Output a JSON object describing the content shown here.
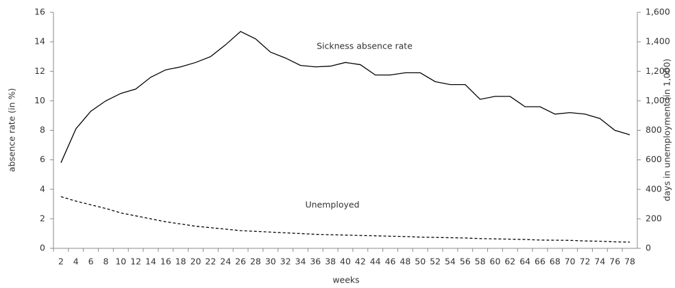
{
  "chart_data": {
    "type": "line",
    "x_label": "weeks",
    "y_label": "absence rate (in %)",
    "y2_label": "days in unemployment (in 1,000)",
    "categories": [
      "2",
      "4",
      "6",
      "8",
      "10",
      "12",
      "14",
      "16",
      "18",
      "20",
      "22",
      "24",
      "26",
      "28",
      "30",
      "32",
      "34",
      "36",
      "38",
      "40",
      "42",
      "44",
      "46",
      "48",
      "50",
      "52",
      "54",
      "56",
      "58",
      "60",
      "62",
      "64",
      "66",
      "68",
      "70",
      "72",
      "74",
      "76",
      "78"
    ],
    "series": [
      {
        "name": "Sickness absence rate",
        "color": "#000000",
        "dash": false,
        "values": [
          5.8,
          8.1,
          9.3,
          10.0,
          10.5,
          10.8,
          11.6,
          12.1,
          12.3,
          12.6,
          13.0,
          13.8,
          14.7,
          14.2,
          13.3,
          12.9,
          12.4,
          12.3,
          12.35,
          12.6,
          12.45,
          11.75,
          11.75,
          11.9,
          11.9,
          11.3,
          11.1,
          11.1,
          10.1,
          10.3,
          10.3,
          9.6,
          9.6,
          9.1,
          9.2,
          9.1,
          8.8,
          8.0,
          7.7
        ]
      },
      {
        "name": "Unemployed",
        "color": "#000000",
        "dash": true,
        "axis": "y2",
        "values": [
          350,
          320,
          295,
          270,
          240,
          220,
          200,
          180,
          165,
          150,
          140,
          130,
          120,
          115,
          110,
          105,
          100,
          95,
          92,
          90,
          87,
          85,
          82,
          80,
          76,
          74,
          72,
          70,
          66,
          64,
          62,
          60,
          56,
          55,
          54,
          50,
          48,
          44,
          42
        ]
      }
    ],
    "ylim": [
      0,
      16
    ],
    "yticks": [
      0,
      2,
      4,
      6,
      8,
      10,
      12,
      14,
      16
    ],
    "y2lim": [
      0,
      1600
    ],
    "y2ticks": [
      0,
      200,
      400,
      600,
      800,
      {
        "value": 1000,
        "label": "1,000"
      },
      {
        "value": 1200,
        "label": "1,200"
      },
      {
        "value": 1400,
        "label": "1,400"
      },
      {
        "value": 1600,
        "label": "1,600"
      }
    ],
    "grid": false
  }
}
